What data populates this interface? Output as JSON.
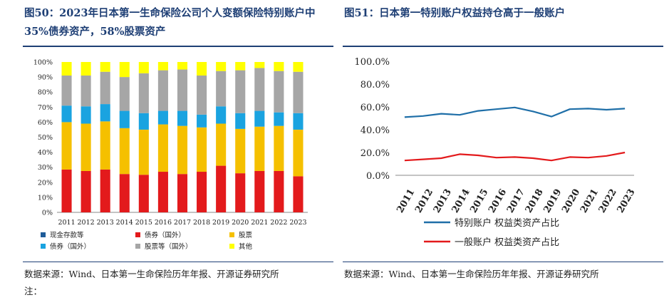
{
  "left": {
    "title": "图50：2023年日本第一生命保险公司个人变额保险特别账户中35%债券资产，58%股票资产",
    "source": "数据来源：Wind、日本第一生命保险历年年报、开源证券研究所",
    "note": "注：",
    "chart_data": {
      "type": "bar",
      "stacked": true,
      "percent": true,
      "categories": [
        "2011",
        "2012",
        "2013",
        "2014",
        "2015",
        "2016",
        "2017",
        "2018",
        "2019",
        "2020",
        "2021",
        "2022",
        "2023"
      ],
      "y_ticks": [
        "0%",
        "10%",
        "20%",
        "30%",
        "40%",
        "50%",
        "60%",
        "70%",
        "80%",
        "90%",
        "100%"
      ],
      "ylim": [
        0,
        100
      ],
      "legend_position": "bottom",
      "series": [
        {
          "name": "现金存款等",
          "color": "#1f5c99",
          "values": [
            0,
            0,
            0,
            0,
            0,
            0,
            0,
            0,
            0,
            0,
            0,
            0,
            0
          ]
        },
        {
          "name": "债券（国外）",
          "color": "#e31a1c",
          "values": [
            28.5,
            27.5,
            28.5,
            25.5,
            25,
            27,
            25.5,
            27,
            31,
            26,
            27.5,
            27.5,
            24
          ]
        },
        {
          "name": "股票",
          "color": "#f5c000",
          "values": [
            31.5,
            31.5,
            32,
            30.5,
            30,
            31.5,
            32,
            29.5,
            28,
            29.5,
            29.5,
            30,
            31
          ]
        },
        {
          "name": "债券（国外）",
          "color": "#1aa3e0",
          "values": [
            11,
            11.5,
            11.5,
            11.5,
            11,
            9,
            10,
            8.5,
            11.5,
            10.5,
            10.5,
            9,
            11
          ]
        },
        {
          "name": "股票等（国外）",
          "color": "#a6a6a6",
          "values": [
            20,
            20.5,
            21.5,
            22.5,
            26.5,
            27,
            27.5,
            26,
            23.5,
            28.5,
            28.5,
            27.5,
            27.5
          ]
        },
        {
          "name": "其他",
          "color": "#ffff00",
          "values": [
            9,
            9,
            6.5,
            10,
            7.5,
            5.5,
            5,
            9,
            6,
            5.5,
            4,
            6,
            6.5
          ]
        }
      ],
      "legend_order": [
        0,
        1,
        2,
        3,
        4,
        5
      ]
    }
  },
  "right": {
    "title": "图51：日本第一特别账户权益持仓高于一般账户",
    "source": "数据来源：Wind、日本第一生命保险历年年报、开源证券研究所",
    "chart_data": {
      "type": "line",
      "categories": [
        "2011",
        "2012",
        "2013",
        "2014",
        "2015",
        "2016",
        "2017",
        "2018",
        "2019",
        "2020",
        "2021",
        "2022",
        "2023"
      ],
      "y_ticks": [
        "0.0%",
        "20.0%",
        "40.0%",
        "60.0%",
        "80.0%",
        "100.0%"
      ],
      "ylim": [
        0,
        100
      ],
      "legend_position": "bottom",
      "series": [
        {
          "name": "特别账户 权益类资产占比",
          "color": "#1f6fa8",
          "values": [
            51,
            52,
            54,
            53,
            56.5,
            58,
            59.5,
            56,
            51.5,
            58,
            58.5,
            57.5,
            58.5
          ]
        },
        {
          "name": "一般账户 权益类资产占比",
          "color": "#e31a1c",
          "values": [
            13,
            14,
            15,
            18.5,
            17.5,
            15.5,
            16,
            15,
            13,
            16,
            15.5,
            17,
            20
          ]
        }
      ]
    }
  }
}
